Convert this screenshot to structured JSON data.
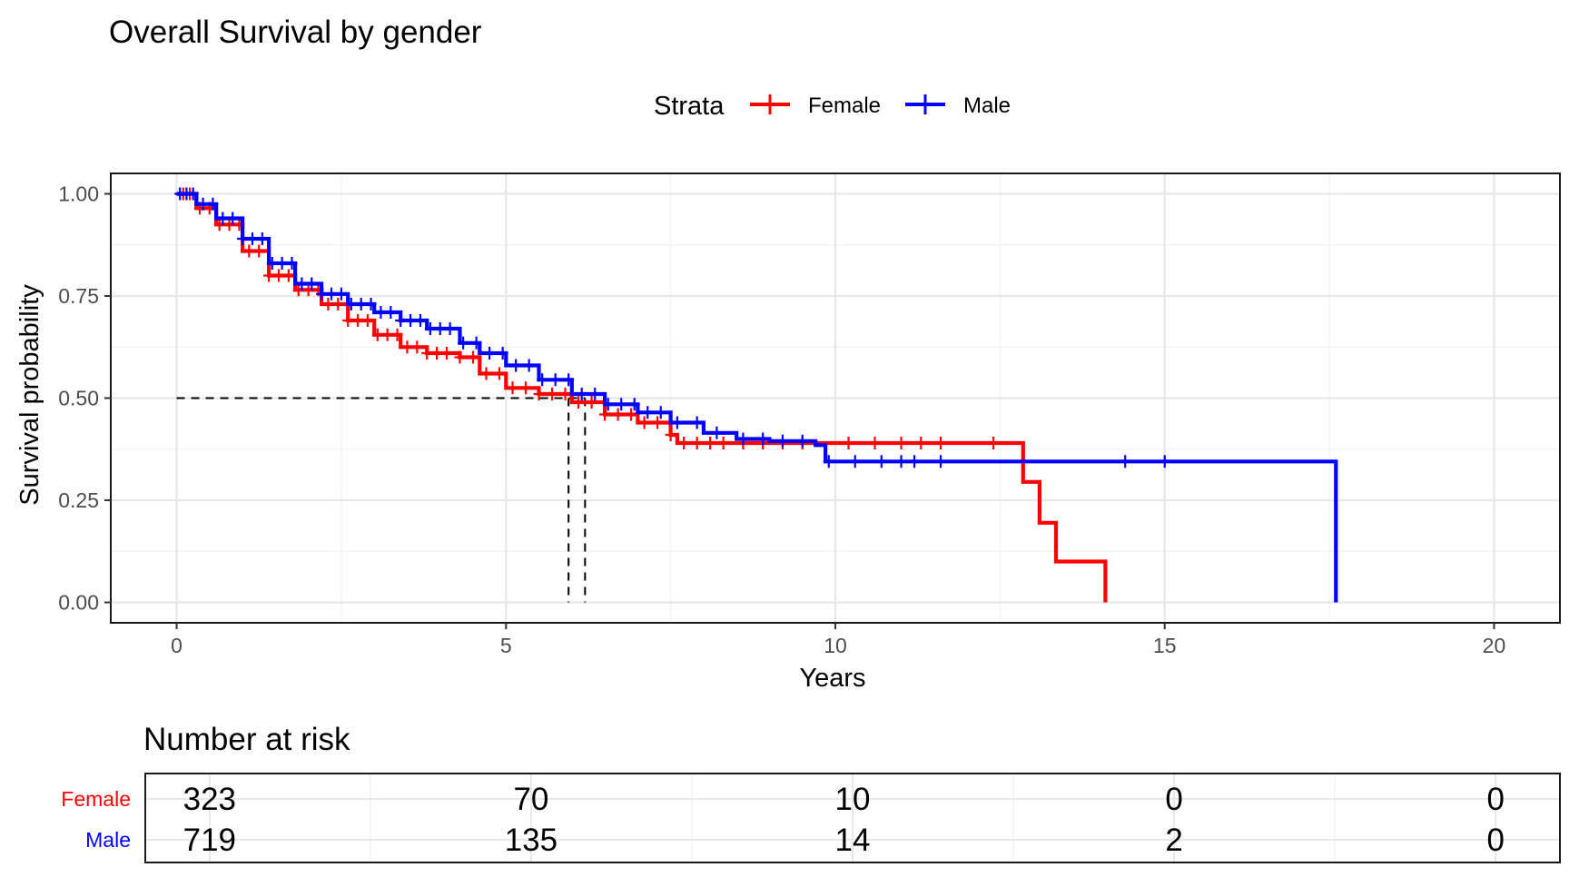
{
  "chart_data": {
    "type": "line",
    "title": "Overall Survival by gender",
    "legend": {
      "title": "Strata",
      "position": "top",
      "entries": [
        "Female",
        "Male"
      ]
    },
    "xlabel": "Years",
    "ylabel": "Survival probability",
    "xlim": [
      -1,
      21
    ],
    "ylim": [
      -0.05,
      1.05
    ],
    "x_ticks": [
      0,
      5,
      10,
      15,
      20
    ],
    "x_tick_labels": [
      "0",
      "5",
      "10",
      "15",
      "20"
    ],
    "y_ticks": [
      0,
      0.25,
      0.5,
      0.75,
      1
    ],
    "y_tick_labels": [
      "0.00",
      "0.25",
      "0.50",
      "0.75",
      "1.00"
    ],
    "grid": true,
    "median_reference": {
      "y": 0.5,
      "x_female": 5.95,
      "x_male": 6.2
    },
    "series": [
      {
        "name": "Female",
        "color": "#ff0000",
        "points": [
          [
            0,
            1.0
          ],
          [
            0.3,
            0.965
          ],
          [
            0.6,
            0.925
          ],
          [
            1.0,
            0.86
          ],
          [
            1.4,
            0.8
          ],
          [
            1.8,
            0.765
          ],
          [
            2.2,
            0.73
          ],
          [
            2.6,
            0.69
          ],
          [
            3.0,
            0.655
          ],
          [
            3.4,
            0.625
          ],
          [
            3.8,
            0.61
          ],
          [
            4.3,
            0.6
          ],
          [
            4.6,
            0.56
          ],
          [
            5.0,
            0.525
          ],
          [
            5.5,
            0.51
          ],
          [
            6.0,
            0.49
          ],
          [
            6.5,
            0.46
          ],
          [
            7.0,
            0.44
          ],
          [
            7.5,
            0.41
          ],
          [
            7.6,
            0.39
          ],
          [
            8.5,
            0.39
          ],
          [
            12.85,
            0.39
          ],
          [
            12.85,
            0.295
          ],
          [
            13.1,
            0.295
          ],
          [
            13.1,
            0.195
          ],
          [
            13.35,
            0.195
          ],
          [
            13.35,
            0.1
          ],
          [
            14.1,
            0.1
          ],
          [
            14.1,
            0.0
          ]
        ],
        "censor_x": [
          0.1,
          0.2,
          0.35,
          0.5,
          0.65,
          0.8,
          0.95,
          1.1,
          1.25,
          1.4,
          1.55,
          1.7,
          1.85,
          2.0,
          2.15,
          2.3,
          2.45,
          2.6,
          2.75,
          2.9,
          3.05,
          3.2,
          3.35,
          3.5,
          3.65,
          3.8,
          3.95,
          4.1,
          4.3,
          4.5,
          4.7,
          4.9,
          5.1,
          5.3,
          5.5,
          5.7,
          5.9,
          6.1,
          6.3,
          6.5,
          6.7,
          6.9,
          7.1,
          7.3,
          7.5,
          7.7,
          7.9,
          8.1,
          8.3,
          8.6,
          8.9,
          9.2,
          9.5,
          10.2,
          10.6,
          11.0,
          11.3,
          11.6,
          12.4
        ]
      },
      {
        "name": "Male",
        "color": "#0000ff",
        "points": [
          [
            0,
            1.0
          ],
          [
            0.3,
            0.975
          ],
          [
            0.6,
            0.94
          ],
          [
            1.0,
            0.89
          ],
          [
            1.4,
            0.83
          ],
          [
            1.8,
            0.78
          ],
          [
            2.2,
            0.755
          ],
          [
            2.6,
            0.73
          ],
          [
            3.0,
            0.71
          ],
          [
            3.4,
            0.69
          ],
          [
            3.8,
            0.67
          ],
          [
            4.3,
            0.635
          ],
          [
            4.6,
            0.61
          ],
          [
            5.0,
            0.58
          ],
          [
            5.5,
            0.545
          ],
          [
            6.0,
            0.51
          ],
          [
            6.5,
            0.485
          ],
          [
            7.0,
            0.465
          ],
          [
            7.5,
            0.44
          ],
          [
            8.0,
            0.415
          ],
          [
            8.5,
            0.4
          ],
          [
            9.0,
            0.395
          ],
          [
            9.7,
            0.385
          ],
          [
            9.85,
            0.345
          ],
          [
            10.5,
            0.345
          ],
          [
            17.6,
            0.345
          ],
          [
            17.6,
            0.0
          ]
        ],
        "censor_x": [
          0.05,
          0.15,
          0.25,
          0.4,
          0.55,
          0.7,
          0.85,
          1.0,
          1.15,
          1.3,
          1.45,
          1.6,
          1.75,
          1.9,
          2.05,
          2.2,
          2.35,
          2.5,
          2.65,
          2.8,
          2.95,
          3.1,
          3.25,
          3.4,
          3.55,
          3.7,
          3.85,
          4.0,
          4.15,
          4.35,
          4.55,
          4.75,
          4.95,
          5.15,
          5.35,
          5.55,
          5.75,
          5.95,
          6.15,
          6.35,
          6.55,
          6.75,
          6.95,
          7.15,
          7.35,
          7.6,
          7.9,
          8.2,
          8.6,
          8.9,
          9.2,
          9.5,
          9.9,
          10.3,
          10.7,
          11.0,
          11.2,
          11.6,
          14.4,
          15.0
        ]
      }
    ],
    "risk_table": {
      "title": "Number at risk",
      "times": [
        0,
        5,
        10,
        15,
        20
      ],
      "rows": [
        {
          "name": "Female",
          "color": "#ff0000",
          "values": [
            "323",
            "70",
            "10",
            "0",
            "0"
          ]
        },
        {
          "name": "Male",
          "color": "#0000ff",
          "values": [
            "719",
            "135",
            "14",
            "2",
            "0"
          ]
        }
      ]
    }
  }
}
